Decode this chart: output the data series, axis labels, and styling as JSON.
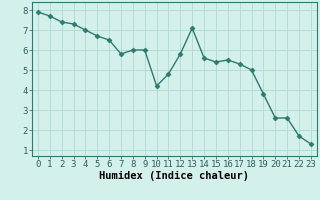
{
  "x": [
    0,
    1,
    2,
    3,
    4,
    5,
    6,
    7,
    8,
    9,
    10,
    11,
    12,
    13,
    14,
    15,
    16,
    17,
    18,
    19,
    20,
    21,
    22,
    23
  ],
  "y": [
    7.9,
    7.7,
    7.4,
    7.3,
    7.0,
    6.7,
    6.5,
    5.8,
    6.0,
    6.0,
    4.2,
    4.8,
    5.8,
    7.1,
    5.6,
    5.4,
    5.5,
    5.3,
    5.0,
    3.8,
    2.6,
    2.6,
    1.7,
    1.3
  ],
  "line_color": "#2d7a6e",
  "marker": "D",
  "marker_size": 2.5,
  "line_width": 1.0,
  "bg_color": "#d4f0eb",
  "grid_color": "#b0d8d0",
  "xlabel": "Humidex (Indice chaleur)",
  "xlabel_fontsize": 7.5,
  "tick_fontsize": 6.5,
  "ylim": [
    0.7,
    8.4
  ],
  "xlim": [
    -0.5,
    23.5
  ],
  "yticks": [
    1,
    2,
    3,
    4,
    5,
    6,
    7,
    8
  ],
  "xticks": [
    0,
    1,
    2,
    3,
    4,
    5,
    6,
    7,
    8,
    9,
    10,
    11,
    12,
    13,
    14,
    15,
    16,
    17,
    18,
    19,
    20,
    21,
    22,
    23
  ]
}
